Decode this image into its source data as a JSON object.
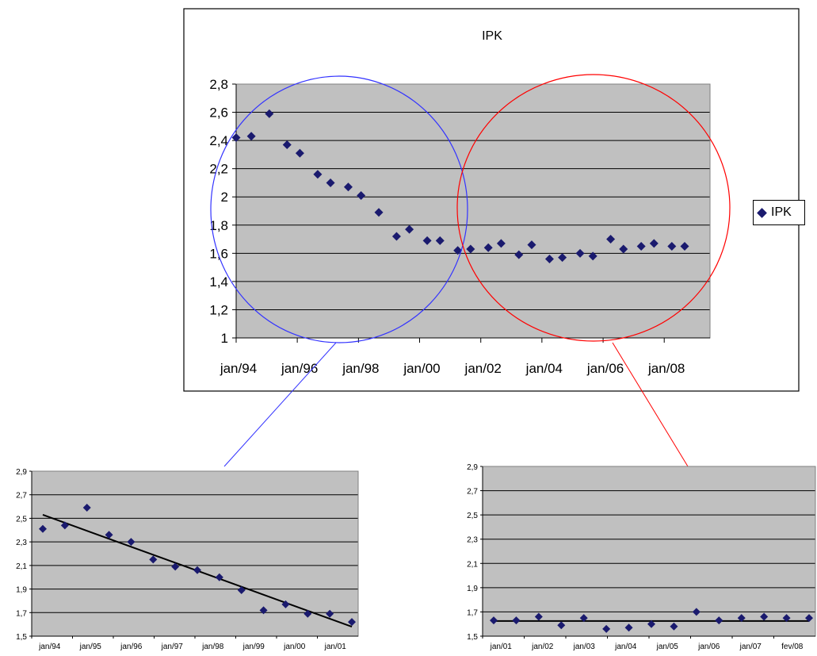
{
  "chart_data": [
    {
      "type": "scatter",
      "title": "IPK",
      "xlabel": "",
      "ylabel": "",
      "ylim": [
        1,
        2.8
      ],
      "yticks": [
        "1",
        "1,2",
        "1,4",
        "1,6",
        "1,8",
        "2",
        "2,2",
        "2,4",
        "2,6",
        "2,8"
      ],
      "xticks": [
        "jan/94",
        "jan/96",
        "jan/98",
        "jan/00",
        "jan/02",
        "jan/04",
        "jan/06",
        "jan/08"
      ],
      "grid": true,
      "legend": "right",
      "legend_entries": [
        "IPK"
      ],
      "series": [
        {
          "name": "IPK",
          "color": "#1a1a6e",
          "x": [
            "1994-01",
            "1994-07",
            "1995-02",
            "1995-09",
            "1996-02",
            "1996-09",
            "1997-02",
            "1997-09",
            "1998-02",
            "1998-09",
            "1999-04",
            "1999-09",
            "2000-04",
            "2000-09",
            "2001-04",
            "2001-09",
            "2002-04",
            "2002-09",
            "2003-04",
            "2003-09",
            "2004-04",
            "2004-09",
            "2005-04",
            "2005-09",
            "2006-04",
            "2006-09",
            "2007-04",
            "2007-09",
            "2008-04",
            "2008-09"
          ],
          "y": [
            2.42,
            2.43,
            2.59,
            2.37,
            2.31,
            2.16,
            2.1,
            2.07,
            2.01,
            1.89,
            1.72,
            1.77,
            1.69,
            1.69,
            1.62,
            1.63,
            1.64,
            1.67,
            1.59,
            1.66,
            1.56,
            1.57,
            1.6,
            1.58,
            1.7,
            1.63,
            1.65,
            1.67,
            1.65,
            1.65
          ]
        }
      ],
      "highlight_circles": [
        {
          "color": "#3333ff",
          "covers": "jan/94 - jan/01"
        },
        {
          "color": "#ff0000",
          "covers": "jan/01 - jan/08"
        }
      ]
    },
    {
      "type": "scatter",
      "title": "",
      "ylim": [
        1.5,
        2.9
      ],
      "yticks": [
        "1,5",
        "1,7",
        "1,9",
        "2,1",
        "2,3",
        "2,5",
        "2,7",
        "2,9"
      ],
      "xticks": [
        "jan/94",
        "jan/95",
        "jan/96",
        "jan/97",
        "jan/98",
        "jan/99",
        "jan/00",
        "jan/01"
      ],
      "grid": true,
      "trendline": {
        "from": 2.53,
        "to": 1.58,
        "color": "#000000"
      },
      "series": [
        {
          "name": "",
          "color": "#1a1a6e",
          "y": [
            2.41,
            2.44,
            2.59,
            2.36,
            2.3,
            2.15,
            2.09,
            2.06,
            2.0,
            1.89,
            1.72,
            1.77,
            1.69,
            1.69,
            1.62
          ]
        }
      ]
    },
    {
      "type": "scatter",
      "title": "",
      "ylim": [
        1.5,
        2.9
      ],
      "yticks": [
        "1,5",
        "1,7",
        "1,9",
        "2,1",
        "2,3",
        "2,5",
        "2,7",
        "2,9"
      ],
      "xticks": [
        "jan/01",
        "jan/02",
        "jan/03",
        "jan/04",
        "jan/05",
        "jan/06",
        "jan/07",
        "fev/08"
      ],
      "grid": true,
      "trendline": {
        "from": 1.625,
        "to": 1.625,
        "color": "#000000"
      },
      "series": [
        {
          "name": "",
          "color": "#1a1a6e",
          "y": [
            1.63,
            1.63,
            1.66,
            1.59,
            1.65,
            1.56,
            1.57,
            1.6,
            1.58,
            1.7,
            1.63,
            1.65,
            1.66,
            1.65,
            1.65
          ]
        }
      ]
    }
  ]
}
